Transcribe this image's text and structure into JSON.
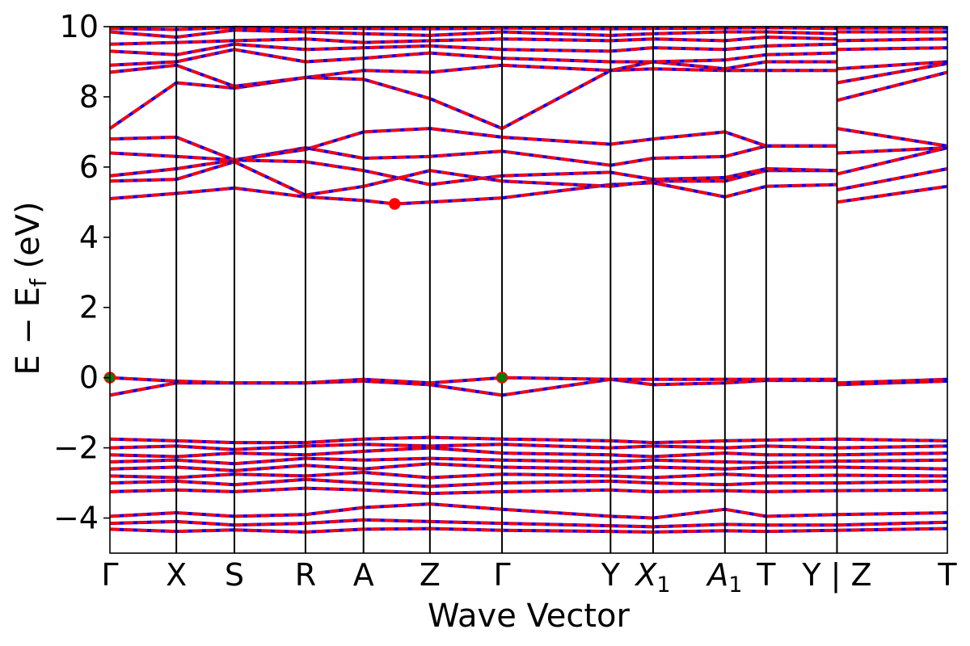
{
  "chart_data": {
    "type": "line",
    "title": "",
    "xlabel": "Wave Vector",
    "ylabel": "E − E_f (eV)",
    "ylabel_parts": {
      "prefix": "E − E",
      "subscript": "f",
      "suffix": " (eV)"
    },
    "ylim": [
      -5,
      10
    ],
    "yticks": [
      -4,
      -2,
      0,
      2,
      4,
      6,
      8,
      10
    ],
    "ytick_labels": [
      "−4",
      "−2",
      "0",
      "2",
      "4",
      "6",
      "8",
      "10"
    ],
    "xlim": [
      0,
      1
    ],
    "grid": false,
    "kpath": [
      {
        "label": "Γ",
        "sub": "",
        "x": 0.0
      },
      {
        "label": "X",
        "sub": "",
        "x": 0.0793
      },
      {
        "label": "S",
        "sub": "",
        "x": 0.1486
      },
      {
        "label": "R",
        "sub": "",
        "x": 0.2335
      },
      {
        "label": "A",
        "sub": "",
        "x": 0.3028
      },
      {
        "label": "Z",
        "sub": "",
        "x": 0.3821
      },
      {
        "label": "Γ",
        "sub": "",
        "x": 0.4682
      },
      {
        "label": "Y",
        "sub": "",
        "x": 0.5978
      },
      {
        "label": "X",
        "sub": "1",
        "x": 0.6486
      },
      {
        "label": "A",
        "sub": "1",
        "x": 0.7344
      },
      {
        "label": "T",
        "sub": "",
        "x": 0.7836
      },
      {
        "label": "Y | Z",
        "sub": "",
        "x": 0.8682
      },
      {
        "label": "T",
        "sub": "",
        "x": 1.0
      }
    ],
    "series_style": [
      {
        "role": "spin-up",
        "color": "#0000ff",
        "dash": "solid"
      },
      {
        "role": "spin-down",
        "color": "#ff0000",
        "dash": "dashed"
      }
    ],
    "bands": [
      {
        "x": [
          0,
          0.0793,
          0.1486,
          0.2335,
          0.3028,
          0.3821,
          0.4682,
          0.5978,
          0.6486,
          0.7344,
          0.7836,
          0.8682,
          0.8682,
          1.0
        ],
        "y": [
          -4.32,
          -4.38,
          -4.34,
          -4.4,
          -4.32,
          -4.3,
          -4.35,
          -4.38,
          -4.4,
          -4.36,
          -4.38,
          -4.35,
          -4.35,
          -4.3
        ]
      },
      {
        "x": [
          0,
          0.0793,
          0.1486,
          0.2335,
          0.3028,
          0.3821,
          0.4682,
          0.5978,
          0.6486,
          0.7344,
          0.7836,
          0.8682,
          0.8682,
          1.0
        ],
        "y": [
          -4.15,
          -4.1,
          -4.2,
          -4.15,
          -4.05,
          -4.1,
          -4.15,
          -4.22,
          -4.25,
          -4.18,
          -4.2,
          -4.2,
          -4.2,
          -4.12
        ]
      },
      {
        "x": [
          0,
          0.0793,
          0.1486,
          0.2335,
          0.3028,
          0.3821,
          0.4682,
          0.5978,
          0.6486,
          0.7344,
          0.7836,
          0.8682,
          0.8682,
          1.0
        ],
        "y": [
          -3.95,
          -3.85,
          -3.95,
          -3.9,
          -3.7,
          -3.6,
          -3.75,
          -3.95,
          -4.0,
          -3.75,
          -3.95,
          -3.9,
          -3.9,
          -3.85
        ]
      },
      {
        "x": [
          0,
          0.0793,
          0.1486,
          0.2335,
          0.3028,
          0.3821,
          0.4682,
          0.5978,
          0.6486,
          0.7344,
          0.7836,
          0.8682,
          0.8682,
          1.0
        ],
        "y": [
          -3.25,
          -3.2,
          -3.25,
          -3.15,
          -3.2,
          -3.3,
          -3.25,
          -3.2,
          -3.25,
          -3.22,
          -3.25,
          -3.22,
          -3.22,
          -3.2
        ]
      },
      {
        "x": [
          0,
          0.0793,
          0.1486,
          0.2335,
          0.3028,
          0.3821,
          0.4682,
          0.5978,
          0.6486,
          0.7344,
          0.7836,
          0.8682,
          0.8682,
          1.0
        ],
        "y": [
          -3.0,
          -2.95,
          -3.05,
          -2.9,
          -3.0,
          -3.1,
          -3.0,
          -2.95,
          -3.0,
          -3.05,
          -3.0,
          -3.0,
          -3.0,
          -2.95
        ]
      },
      {
        "x": [
          0,
          0.0793,
          0.1486,
          0.2335,
          0.3028,
          0.3821,
          0.4682,
          0.5978,
          0.6486,
          0.7344,
          0.7836,
          0.8682,
          0.8682,
          1.0
        ],
        "y": [
          -2.8,
          -2.85,
          -2.75,
          -2.8,
          -2.7,
          -2.85,
          -2.75,
          -2.8,
          -2.85,
          -2.75,
          -2.8,
          -2.78,
          -2.78,
          -2.8
        ]
      },
      {
        "x": [
          0,
          0.0793,
          0.1486,
          0.2335,
          0.3028,
          0.3821,
          0.4682,
          0.5978,
          0.6486,
          0.7344,
          0.7836,
          0.8682,
          0.8682,
          1.0
        ],
        "y": [
          -2.6,
          -2.55,
          -2.65,
          -2.5,
          -2.6,
          -2.45,
          -2.55,
          -2.6,
          -2.55,
          -2.6,
          -2.55,
          -2.55,
          -2.55,
          -2.6
        ]
      },
      {
        "x": [
          0,
          0.0793,
          0.1486,
          0.2335,
          0.3028,
          0.3821,
          0.4682,
          0.5978,
          0.6486,
          0.7344,
          0.7836,
          0.8682,
          0.8682,
          1.0
        ],
        "y": [
          -2.4,
          -2.35,
          -2.45,
          -2.3,
          -2.35,
          -2.3,
          -2.35,
          -2.4,
          -2.35,
          -2.4,
          -2.42,
          -2.38,
          -2.38,
          -2.35
        ]
      },
      {
        "x": [
          0,
          0.0793,
          0.1486,
          0.2335,
          0.3028,
          0.3821,
          0.4682,
          0.5978,
          0.6486,
          0.7344,
          0.7836,
          0.8682,
          0.8682,
          1.0
        ],
        "y": [
          -2.2,
          -2.25,
          -2.15,
          -2.2,
          -2.1,
          -2.0,
          -2.15,
          -2.2,
          -2.25,
          -2.15,
          -2.2,
          -2.2,
          -2.2,
          -2.15
        ]
      },
      {
        "x": [
          0,
          0.0793,
          0.1486,
          0.2335,
          0.3028,
          0.3821,
          0.4682,
          0.5978,
          0.6486,
          0.7344,
          0.7836,
          0.8682,
          0.8682,
          1.0
        ],
        "y": [
          -2.0,
          -1.95,
          -2.05,
          -1.95,
          -1.9,
          -1.95,
          -1.9,
          -2.0,
          -1.95,
          -2.0,
          -1.95,
          -2.0,
          -2.0,
          -1.95
        ]
      },
      {
        "x": [
          0,
          0.0793,
          0.1486,
          0.2335,
          0.3028,
          0.3821,
          0.4682,
          0.5978,
          0.6486,
          0.7344,
          0.7836,
          0.8682,
          0.8682,
          1.0
        ],
        "y": [
          -1.75,
          -1.8,
          -1.85,
          -1.85,
          -1.75,
          -1.7,
          -1.75,
          -1.8,
          -1.85,
          -1.8,
          -1.78,
          -1.75,
          -1.75,
          -1.8
        ]
      },
      {
        "x": [
          0,
          0.0793,
          0.1486,
          0.2335,
          0.3028,
          0.3821,
          0.4682,
          0.5978,
          0.6486,
          0.7344,
          0.7836,
          0.8682,
          0.8682,
          1.0
        ],
        "y": [
          -0.5,
          -0.15,
          -0.15,
          -0.15,
          -0.1,
          -0.2,
          -0.5,
          -0.05,
          -0.2,
          -0.15,
          -0.08,
          -0.08,
          -0.2,
          -0.1
        ]
      },
      {
        "x": [
          0,
          0.0793,
          0.1486,
          0.2335,
          0.3028,
          0.3821,
          0.4682,
          0.5978,
          0.6486,
          0.7344,
          0.7836,
          0.8682,
          0.8682,
          1.0
        ],
        "y": [
          0.0,
          -0.1,
          -0.15,
          -0.15,
          -0.05,
          -0.15,
          0.0,
          -0.05,
          -0.05,
          -0.05,
          -0.05,
          -0.05,
          -0.15,
          -0.05
        ]
      },
      {
        "x": [
          0,
          0.0793,
          0.1486,
          0.2335,
          0.3028,
          0.34,
          0.3821,
          0.4682,
          0.5978,
          0.6486,
          0.7344,
          0.7836,
          0.8682,
          0.8682,
          1.0
        ],
        "y": [
          5.1,
          5.25,
          5.4,
          5.15,
          5.05,
          4.95,
          5.0,
          5.12,
          5.5,
          5.55,
          5.15,
          5.45,
          5.5,
          5.0,
          5.45
        ]
      },
      {
        "x": [
          0,
          0.0793,
          0.1486,
          0.2335,
          0.3028,
          0.3821,
          0.4682,
          0.5978,
          0.6486,
          0.7344,
          0.7836,
          0.8682,
          0.8682,
          1.0
        ],
        "y": [
          5.6,
          5.65,
          6.15,
          5.2,
          5.45,
          5.9,
          5.6,
          5.45,
          5.6,
          5.6,
          5.9,
          5.9,
          5.35,
          5.95
        ]
      },
      {
        "x": [
          0,
          0.0793,
          0.1486,
          0.2335,
          0.3028,
          0.3821,
          0.4682,
          0.5978,
          0.6486,
          0.7344,
          0.7836,
          0.8682,
          0.8682,
          1.0
        ],
        "y": [
          5.75,
          5.95,
          6.2,
          6.15,
          5.9,
          5.5,
          5.75,
          5.85,
          5.65,
          5.7,
          5.95,
          5.9,
          5.8,
          6.55
        ]
      },
      {
        "x": [
          0,
          0.0793,
          0.1486,
          0.2335,
          0.3028,
          0.3821,
          0.4682,
          0.5978,
          0.6486,
          0.7344,
          0.7836,
          0.8682,
          0.8682,
          1.0
        ],
        "y": [
          6.4,
          6.3,
          6.2,
          6.55,
          6.25,
          6.3,
          6.45,
          6.05,
          6.25,
          6.3,
          6.6,
          6.6,
          6.4,
          6.55
        ]
      },
      {
        "x": [
          0,
          0.0793,
          0.1486,
          0.2335,
          0.3028,
          0.3821,
          0.4682,
          0.5978,
          0.6486,
          0.7344,
          0.7836,
          0.8682,
          0.8682,
          1.0
        ],
        "y": [
          6.8,
          6.85,
          6.2,
          6.5,
          7.0,
          7.1,
          6.85,
          6.65,
          6.8,
          7.0,
          6.6,
          6.6,
          7.1,
          6.6
        ]
      },
      {
        "x": [
          0,
          0.0793,
          0.1486,
          0.2335,
          0.3028,
          0.3821,
          0.4682,
          0.5978,
          0.6486,
          0.7344,
          0.7836,
          0.8682,
          0.8682,
          1.0
        ],
        "y": [
          7.1,
          8.4,
          8.25,
          8.55,
          8.5,
          7.95,
          7.1,
          8.75,
          8.8,
          8.75,
          8.75,
          8.75,
          7.9,
          8.7
        ]
      },
      {
        "x": [
          0,
          0.0793,
          0.1486,
          0.2335,
          0.3028,
          0.3821,
          0.4682,
          0.5978,
          0.6486,
          0.7344,
          0.7836,
          0.8682,
          0.8682,
          1.0
        ],
        "y": [
          8.7,
          8.9,
          8.3,
          8.55,
          8.75,
          8.7,
          8.9,
          8.75,
          9.0,
          8.8,
          9.0,
          9.0,
          8.4,
          8.95
        ]
      },
      {
        "x": [
          0,
          0.0793,
          0.1486,
          0.2335,
          0.3028,
          0.3821,
          0.4682,
          0.5978,
          0.6486,
          0.7344,
          0.7836,
          0.8682,
          0.8682,
          1.0
        ],
        "y": [
          8.9,
          9.0,
          9.35,
          9.0,
          9.1,
          9.25,
          9.1,
          9.0,
          9.0,
          9.05,
          9.2,
          9.25,
          8.8,
          9.0
        ]
      },
      {
        "x": [
          0,
          0.0793,
          0.1486,
          0.2335,
          0.3028,
          0.3821,
          0.4682,
          0.5978,
          0.6486,
          0.7344,
          0.7836,
          0.8682,
          0.8682,
          1.0
        ],
        "y": [
          9.3,
          9.2,
          9.5,
          9.35,
          9.4,
          9.45,
          9.35,
          9.3,
          9.4,
          9.35,
          9.45,
          9.5,
          9.35,
          9.4
        ]
      },
      {
        "x": [
          0,
          0.0793,
          0.1486,
          0.2335,
          0.3028,
          0.3821,
          0.4682,
          0.5978,
          0.6486,
          0.7344,
          0.7836,
          0.8682,
          0.8682,
          1.0
        ],
        "y": [
          9.5,
          9.55,
          9.6,
          9.65,
          9.55,
          9.6,
          9.65,
          9.6,
          9.65,
          9.6,
          9.7,
          9.65,
          9.6,
          9.65
        ]
      },
      {
        "x": [
          0,
          0.0793,
          0.1486,
          0.2335,
          0.3028,
          0.3821,
          0.4682,
          0.5978,
          0.6486,
          0.7344,
          0.7836,
          0.8682,
          0.8682,
          1.0
        ],
        "y": [
          9.85,
          9.7,
          9.9,
          9.85,
          9.8,
          9.75,
          9.85,
          9.75,
          9.8,
          9.85,
          9.85,
          9.8,
          9.85,
          9.85
        ]
      },
      {
        "x": [
          0,
          0.0793,
          0.1486,
          0.2335,
          0.3028,
          0.3821,
          0.4682,
          0.5978,
          0.6486,
          0.7344,
          0.7836,
          0.8682,
          0.8682,
          1.0
        ],
        "y": [
          9.95,
          9.92,
          9.98,
          9.96,
          9.95,
          9.94,
          9.96,
          9.94,
          9.95,
          9.96,
          9.97,
          9.95,
          9.96,
          9.96
        ]
      }
    ],
    "markers": [
      {
        "x": 0.0,
        "y": 0.0,
        "color": "#008000"
      },
      {
        "x": 0.4682,
        "y": 0.0,
        "color": "#008000"
      },
      {
        "x": 0.34,
        "y": 4.95,
        "color": "#ff0000"
      }
    ]
  }
}
